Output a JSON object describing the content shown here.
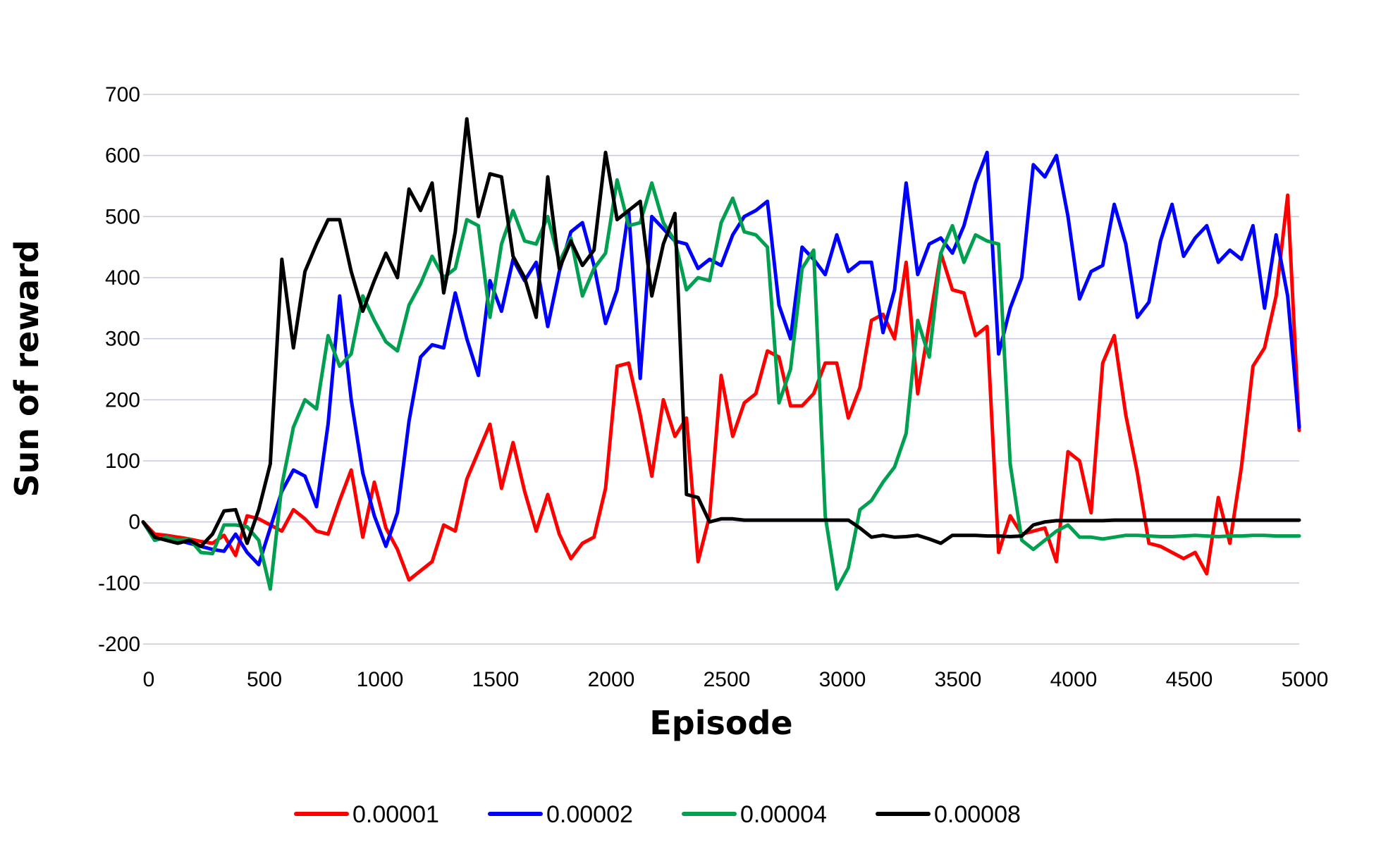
{
  "chart_data": {
    "type": "line",
    "title": "",
    "xlabel": "Episode",
    "ylabel": "Sun of reward",
    "xlim": [
      0,
      5000
    ],
    "ylim": [
      -200,
      700
    ],
    "x_ticks": [
      0,
      500,
      1000,
      1500,
      2000,
      2500,
      3000,
      3500,
      4000,
      4500,
      5000
    ],
    "y_ticks": [
      -200,
      -100,
      0,
      100,
      200,
      300,
      400,
      500,
      600,
      700
    ],
    "grid": true,
    "legend_position": "bottom",
    "x": [
      0,
      50,
      100,
      150,
      200,
      250,
      300,
      350,
      400,
      450,
      500,
      550,
      600,
      650,
      700,
      750,
      800,
      850,
      900,
      950,
      1000,
      1050,
      1100,
      1150,
      1200,
      1250,
      1300,
      1350,
      1400,
      1450,
      1500,
      1550,
      1600,
      1650,
      1700,
      1750,
      1800,
      1850,
      1900,
      1950,
      2000,
      2050,
      2100,
      2150,
      2200,
      2250,
      2300,
      2350,
      2400,
      2450,
      2500,
      2550,
      2600,
      2650,
      2700,
      2750,
      2800,
      2850,
      2900,
      2950,
      3000,
      3050,
      3100,
      3150,
      3200,
      3250,
      3300,
      3350,
      3400,
      3450,
      3500,
      3550,
      3600,
      3650,
      3700,
      3750,
      3800,
      3850,
      3900,
      3950,
      4000,
      4050,
      4100,
      4150,
      4200,
      4250,
      4300,
      4350,
      4400,
      4450,
      4500,
      4550,
      4600,
      4650,
      4700,
      4750,
      4800,
      4850,
      4900,
      4950,
      5000
    ],
    "series": [
      {
        "name": "0.00001",
        "color": "#ff0000",
        "values": [
          0,
          -20,
          -22,
          -25,
          -28,
          -32,
          -35,
          -22,
          -55,
          10,
          5,
          -5,
          -15,
          20,
          5,
          -15,
          -20,
          35,
          85,
          -25,
          65,
          -10,
          -45,
          -95,
          -80,
          -65,
          -5,
          -15,
          70,
          115,
          160,
          55,
          130,
          50,
          -15,
          45,
          -20,
          -60,
          -35,
          -25,
          55,
          255,
          260,
          175,
          75,
          200,
          140,
          170,
          -65,
          10,
          240,
          140,
          195,
          210,
          280,
          270,
          190,
          190,
          210,
          260,
          260,
          170,
          220,
          330,
          340,
          300,
          425,
          210,
          325,
          440,
          380,
          375,
          305,
          320,
          -50,
          10,
          -20,
          -15,
          -10,
          -65,
          115,
          100,
          15,
          260,
          305,
          175,
          80,
          -35,
          -40,
          -50,
          -60,
          -50,
          -85,
          40,
          -35,
          90,
          255,
          285,
          370,
          535,
          150
        ]
      },
      {
        "name": "0.00002",
        "color": "#0000ff",
        "values": [
          0,
          -30,
          -25,
          -30,
          -35,
          -40,
          -45,
          -48,
          -20,
          -50,
          -70,
          -10,
          50,
          85,
          75,
          25,
          160,
          370,
          200,
          80,
          10,
          -40,
          15,
          165,
          270,
          290,
          285,
          375,
          300,
          240,
          395,
          345,
          430,
          395,
          425,
          320,
          410,
          475,
          490,
          420,
          325,
          380,
          510,
          235,
          500,
          480,
          460,
          455,
          415,
          430,
          420,
          470,
          500,
          510,
          525,
          355,
          300,
          450,
          430,
          405,
          470,
          410,
          425,
          425,
          310,
          380,
          555,
          405,
          455,
          465,
          440,
          485,
          555,
          605,
          275,
          350,
          400,
          585,
          565,
          600,
          500,
          365,
          410,
          420,
          520,
          455,
          335,
          360,
          460,
          520,
          435,
          465,
          485,
          425,
          445,
          430,
          485,
          350,
          470,
          370,
          155
        ]
      },
      {
        "name": "0.00004",
        "color": "#00a050",
        "values": [
          0,
          -30,
          -25,
          -30,
          -28,
          -50,
          -52,
          -5,
          -5,
          -8,
          -30,
          -110,
          60,
          155,
          200,
          185,
          305,
          255,
          275,
          370,
          330,
          295,
          280,
          355,
          390,
          435,
          400,
          415,
          495,
          485,
          335,
          455,
          510,
          460,
          455,
          500,
          425,
          465,
          370,
          415,
          440,
          560,
          485,
          490,
          555,
          490,
          460,
          380,
          400,
          395,
          490,
          530,
          475,
          470,
          450,
          195,
          250,
          415,
          445,
          10,
          -110,
          -75,
          20,
          35,
          65,
          90,
          145,
          330,
          270,
          440,
          485,
          425,
          470,
          460,
          455,
          95,
          -30,
          -45,
          -30,
          -15,
          -5,
          -25,
          -25,
          -28,
          -25,
          -22,
          -22,
          -23,
          -24,
          -24,
          -23,
          -22,
          -23,
          -24,
          -23,
          -23,
          -22,
          -22,
          -23,
          -23,
          -23
        ]
      },
      {
        "name": "0.00008",
        "color": "#000000",
        "values": [
          0,
          -25,
          -30,
          -35,
          -30,
          -40,
          -20,
          18,
          20,
          -35,
          20,
          95,
          430,
          285,
          410,
          455,
          495,
          495,
          410,
          345,
          395,
          440,
          400,
          545,
          510,
          555,
          375,
          475,
          660,
          500,
          570,
          565,
          435,
          400,
          335,
          565,
          415,
          460,
          420,
          445,
          605,
          495,
          510,
          525,
          370,
          455,
          505,
          45,
          40,
          0,
          5,
          5,
          3,
          3,
          3,
          3,
          3,
          3,
          3,
          3,
          3,
          3,
          -10,
          -25,
          -22,
          -25,
          -24,
          -22,
          -28,
          -35,
          -22,
          -22,
          -22,
          -23,
          -23,
          -24,
          -23,
          -5,
          0,
          2,
          2,
          2,
          2,
          2,
          3,
          3,
          3,
          3,
          3,
          3,
          3,
          3,
          3,
          3,
          3,
          3,
          3,
          3,
          3,
          3,
          3
        ]
      }
    ]
  }
}
